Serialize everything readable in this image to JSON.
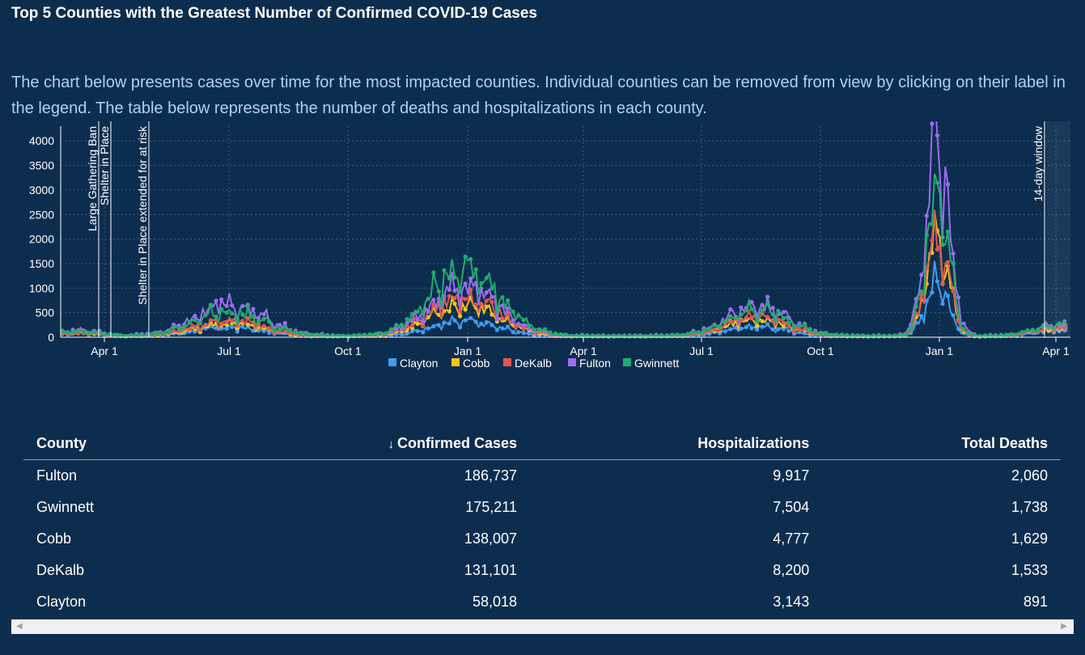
{
  "header": {
    "title": "Top 5 Counties with the Greatest Number of Confirmed COVID-19 Cases",
    "description": "The chart below presents cases over time for the most impacted counties. Individual counties can be removed from view by clicking on their label in the legend. The table below represents the number of deaths and hospitalizations in each county."
  },
  "chart_data": {
    "type": "line",
    "ylim": [
      0,
      4300
    ],
    "yticks": [
      "0",
      "500",
      "1000",
      "1500",
      "2000",
      "2500",
      "3000",
      "3500",
      "4000"
    ],
    "xticks": [
      "Apr 1",
      "Jul 1",
      "Oct 1",
      "Jan 1",
      "Apr 1",
      "Jul 1",
      "Oct 1",
      "Jan 1",
      "Apr 1"
    ],
    "annotations": [
      {
        "label": "Large Gathering Ban"
      },
      {
        "label": "Shelter in Place"
      },
      {
        "label": "Shelter in Place extended for at risk"
      },
      {
        "label": "14-day window"
      }
    ],
    "legend_position": "bottom",
    "series": [
      {
        "name": "Clayton",
        "color": "#3d9df3"
      },
      {
        "name": "Cobb",
        "color": "#f5c518"
      },
      {
        "name": "DeKalb",
        "color": "#e0584f"
      },
      {
        "name": "Fulton",
        "color": "#9c6cf0"
      },
      {
        "name": "Gwinnett",
        "color": "#1fae6c"
      }
    ],
    "peaks": {
      "Clayton": [
        60,
        180,
        300,
        200,
        1100,
        120
      ],
      "Cobb": [
        70,
        260,
        650,
        350,
        1900,
        150
      ],
      "DeKalb": [
        70,
        320,
        800,
        400,
        2000,
        160
      ],
      "Fulton": [
        110,
        650,
        1000,
        600,
        4080,
        200
      ],
      "Gwinnett": [
        90,
        500,
        1380,
        550,
        2800,
        220
      ]
    }
  },
  "table": {
    "sort_indicator": "↓",
    "columns": [
      "County",
      "Confirmed Cases",
      "Hospitalizations",
      "Total Deaths"
    ],
    "rows": [
      [
        "Fulton",
        "186,737",
        "9,917",
        "2,060"
      ],
      [
        "Gwinnett",
        "175,211",
        "7,504",
        "1,738"
      ],
      [
        "Cobb",
        "138,007",
        "4,777",
        "1,629"
      ],
      [
        "DeKalb",
        "131,101",
        "8,200",
        "1,533"
      ],
      [
        "Clayton",
        "58,018",
        "3,143",
        "891"
      ]
    ]
  }
}
